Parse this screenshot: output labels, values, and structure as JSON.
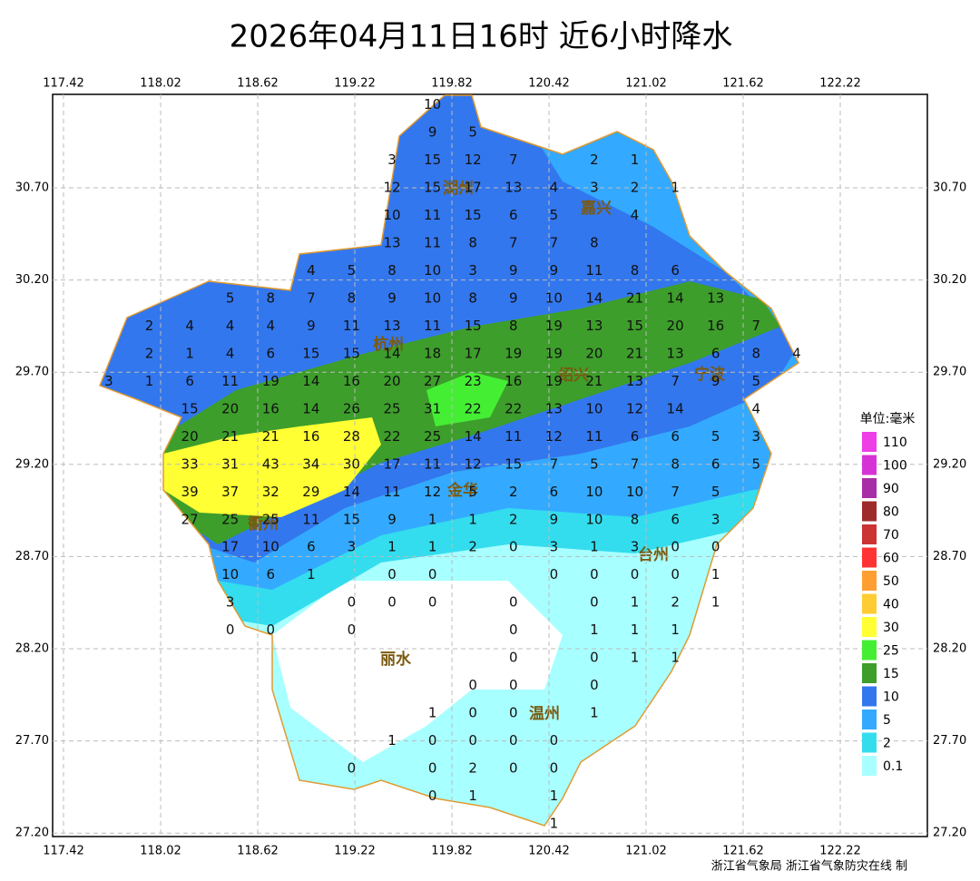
{
  "title": "2026年04月11日16时  近6小时降水",
  "lon_ticks": [
    {
      "value": 117.42,
      "label": "117.42"
    },
    {
      "value": 118.02,
      "label": "118.02"
    },
    {
      "value": 118.62,
      "label": "118.62"
    },
    {
      "value": 119.22,
      "label": "119.22"
    },
    {
      "value": 119.82,
      "label": "119.82"
    },
    {
      "value": 120.42,
      "label": "120.42"
    },
    {
      "value": 121.02,
      "label": "121.02"
    },
    {
      "value": 121.62,
      "label": "121.62"
    },
    {
      "value": 122.22,
      "label": "122.22"
    }
  ],
  "lat_ticks": [
    {
      "value": 30.7,
      "label": "30.70"
    },
    {
      "value": 30.2,
      "label": "30.20"
    },
    {
      "value": 29.7,
      "label": "29.70"
    },
    {
      "value": 29.2,
      "label": "29.20"
    },
    {
      "value": 28.7,
      "label": "28.70"
    },
    {
      "value": 28.2,
      "label": "28.20"
    },
    {
      "value": 27.7,
      "label": "27.70"
    },
    {
      "value": 27.2,
      "label": "27.20"
    }
  ],
  "cities": [
    "湖州",
    "嘉兴",
    "杭州",
    "绍兴",
    "宁波",
    "金华",
    "衢州",
    "台州",
    "丽水",
    "温州"
  ],
  "legend": {
    "unit": "单位:毫米",
    "levels": [
      {
        "value": 110,
        "color": "#ee3ee6"
      },
      {
        "value": 100,
        "color": "#d633d6"
      },
      {
        "value": 90,
        "color": "#a82ea8"
      },
      {
        "value": 80,
        "color": "#9e2b2b"
      },
      {
        "value": 70,
        "color": "#cc3333"
      },
      {
        "value": 60,
        "color": "#ff3333"
      },
      {
        "value": 50,
        "color": "#ff9f33"
      },
      {
        "value": 40,
        "color": "#ffcc33"
      },
      {
        "value": 30,
        "color": "#ffff33"
      },
      {
        "value": 25,
        "color": "#44ee33"
      },
      {
        "value": 15,
        "color": "#3d9e2b"
      },
      {
        "value": 10,
        "color": "#3377ee"
      },
      {
        "value": 5,
        "color": "#33aaff"
      },
      {
        "value": 2,
        "color": "#33ddee"
      },
      {
        "value": 0.1,
        "color": "#a8ffff"
      }
    ]
  },
  "grid": {
    "lon": [
      117.7,
      117.95,
      118.2,
      118.45,
      118.7,
      118.95,
      119.2,
      119.45,
      119.7,
      119.95,
      120.2,
      120.45,
      120.7,
      120.95,
      121.2,
      121.45,
      121.7,
      121.95
    ],
    "lat": [
      31.15,
      31.0,
      30.85,
      30.7,
      30.55,
      30.4,
      30.25,
      30.1,
      29.95,
      29.8,
      29.65,
      29.5,
      29.35,
      29.2,
      29.05,
      28.9,
      28.75,
      28.6,
      28.45,
      28.3,
      28.15,
      28.0,
      27.85,
      27.7,
      27.55,
      27.4,
      27.25
    ],
    "values": [
      [
        null,
        null,
        null,
        null,
        null,
        null,
        null,
        null,
        10,
        null,
        null,
        null,
        null,
        null,
        null,
        null,
        null,
        null
      ],
      [
        null,
        null,
        null,
        null,
        null,
        null,
        null,
        null,
        9,
        5,
        null,
        null,
        null,
        null,
        null,
        null,
        null,
        null
      ],
      [
        null,
        null,
        null,
        null,
        null,
        null,
        null,
        3,
        15,
        12,
        7,
        null,
        2,
        1,
        null,
        null,
        null,
        null
      ],
      [
        null,
        null,
        null,
        null,
        null,
        null,
        null,
        12,
        15,
        17,
        13,
        4,
        3,
        2,
        1,
        null,
        null,
        null
      ],
      [
        null,
        null,
        null,
        null,
        null,
        null,
        null,
        10,
        11,
        15,
        6,
        5,
        null,
        4,
        null,
        null,
        null,
        null
      ],
      [
        null,
        null,
        null,
        null,
        null,
        null,
        null,
        13,
        11,
        8,
        7,
        7,
        8,
        null,
        null,
        null,
        null,
        null
      ],
      [
        null,
        null,
        null,
        null,
        null,
        4,
        5,
        8,
        10,
        3,
        9,
        9,
        11,
        8,
        6,
        null,
        null,
        null
      ],
      [
        null,
        null,
        null,
        5,
        8,
        7,
        8,
        9,
        10,
        8,
        9,
        10,
        14,
        21,
        14,
        13,
        null,
        null
      ],
      [
        null,
        2,
        4,
        4,
        4,
        9,
        11,
        13,
        11,
        15,
        8,
        19,
        13,
        15,
        20,
        16,
        7,
        null
      ],
      [
        null,
        2,
        1,
        4,
        6,
        15,
        15,
        14,
        18,
        17,
        19,
        19,
        20,
        21,
        13,
        6,
        8,
        4
      ],
      [
        3,
        1,
        6,
        11,
        19,
        14,
        16,
        20,
        27,
        23,
        16,
        19,
        21,
        13,
        7,
        9,
        5,
        null
      ],
      [
        null,
        null,
        15,
        20,
        16,
        14,
        26,
        25,
        31,
        22,
        22,
        13,
        10,
        12,
        14,
        null,
        4,
        null
      ],
      [
        null,
        null,
        20,
        21,
        21,
        16,
        28,
        22,
        25,
        14,
        11,
        12,
        11,
        6,
        6,
        5,
        3,
        null
      ],
      [
        null,
        null,
        33,
        31,
        43,
        34,
        30,
        17,
        11,
        12,
        15,
        7,
        5,
        7,
        8,
        6,
        5,
        null
      ],
      [
        null,
        null,
        39,
        37,
        32,
        29,
        14,
        11,
        12,
        5,
        2,
        6,
        10,
        10,
        7,
        5,
        null,
        null
      ],
      [
        null,
        null,
        27,
        25,
        25,
        11,
        15,
        9,
        1,
        1,
        2,
        9,
        10,
        8,
        6,
        3,
        null,
        null
      ],
      [
        null,
        null,
        null,
        17,
        10,
        6,
        3,
        1,
        1,
        2,
        0,
        3,
        1,
        3,
        0,
        0,
        null,
        null
      ],
      [
        null,
        null,
        null,
        10,
        6,
        1,
        null,
        0,
        0,
        null,
        null,
        0,
        0,
        0,
        0,
        1,
        null,
        null
      ],
      [
        null,
        null,
        null,
        3,
        null,
        null,
        0,
        0,
        0,
        null,
        0,
        null,
        0,
        1,
        2,
        1,
        null,
        null
      ],
      [
        null,
        null,
        null,
        0,
        0,
        null,
        0,
        null,
        null,
        null,
        0,
        null,
        1,
        1,
        1,
        null,
        null,
        null
      ],
      [
        null,
        null,
        null,
        null,
        null,
        null,
        null,
        null,
        null,
        null,
        0,
        null,
        0,
        1,
        1,
        null,
        null,
        null
      ],
      [
        null,
        null,
        null,
        null,
        null,
        null,
        null,
        null,
        null,
        0,
        0,
        null,
        0,
        null,
        null,
        null,
        null,
        null
      ],
      [
        null,
        null,
        null,
        null,
        null,
        null,
        null,
        null,
        1,
        0,
        0,
        null,
        1,
        null,
        null,
        null,
        null,
        null
      ],
      [
        null,
        null,
        null,
        null,
        null,
        null,
        null,
        1,
        0,
        0,
        0,
        0,
        null,
        null,
        null,
        null,
        null,
        null
      ],
      [
        null,
        null,
        null,
        null,
        null,
        null,
        0,
        null,
        0,
        2,
        0,
        0,
        null,
        null,
        null,
        null,
        null,
        null
      ],
      [
        null,
        null,
        null,
        null,
        null,
        null,
        null,
        null,
        0,
        1,
        null,
        1,
        null,
        null,
        null,
        null,
        null,
        null
      ],
      [
        null,
        null,
        null,
        null,
        null,
        null,
        null,
        null,
        null,
        null,
        null,
        1,
        null,
        null,
        null,
        null,
        null,
        null
      ]
    ]
  },
  "credit": "浙江省气象局 浙江省气象防灾在线 制"
}
